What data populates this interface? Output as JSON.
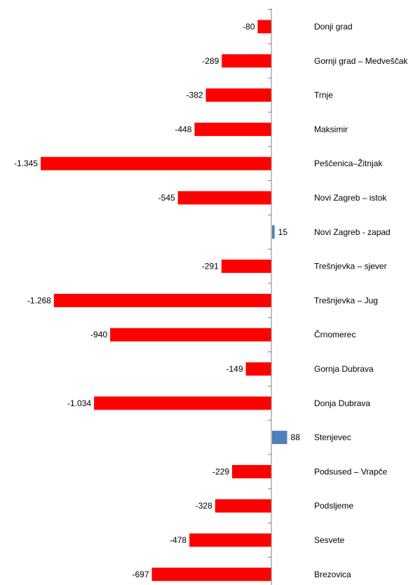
{
  "chart_data": {
    "type": "bar",
    "orientation": "horizontal",
    "categories": [
      "Donji grad",
      "Gornji grad – Medveščak",
      "Trnje",
      "Maksimir",
      "Peščenica–Žitnjak",
      "Novi Zagreb – istok",
      "Novi Zagreb - zapad",
      "Trešnjevka – sjever",
      "Trešnjevka – Jug",
      "Črnomerec",
      "Gornja Dubrava",
      "Donja Dubrava",
      "Stenjevec",
      "Podsused – Vrapče",
      "Podsljeme",
      "Sesvete",
      "Brezovica"
    ],
    "values": [
      -80,
      -289,
      -382,
      -448,
      -1345,
      -545,
      15,
      -291,
      -1268,
      -940,
      -149,
      -1034,
      88,
      -229,
      -328,
      -478,
      -697
    ],
    "value_labels": [
      "-80",
      "-289",
      "-382",
      "-448",
      "-1.345",
      "-545",
      "15",
      "-291",
      "-1.268",
      "-940",
      "-149",
      "-1.034",
      "88",
      "-229",
      "-328",
      "-478",
      "-697"
    ],
    "title": "",
    "xlabel": "",
    "ylabel": "",
    "xlim": [
      -1345,
      88
    ],
    "grid": false,
    "legend": "none",
    "colors": {
      "negative": "#ff0000",
      "positive": "#4f81bd",
      "axis": "#808080"
    }
  }
}
